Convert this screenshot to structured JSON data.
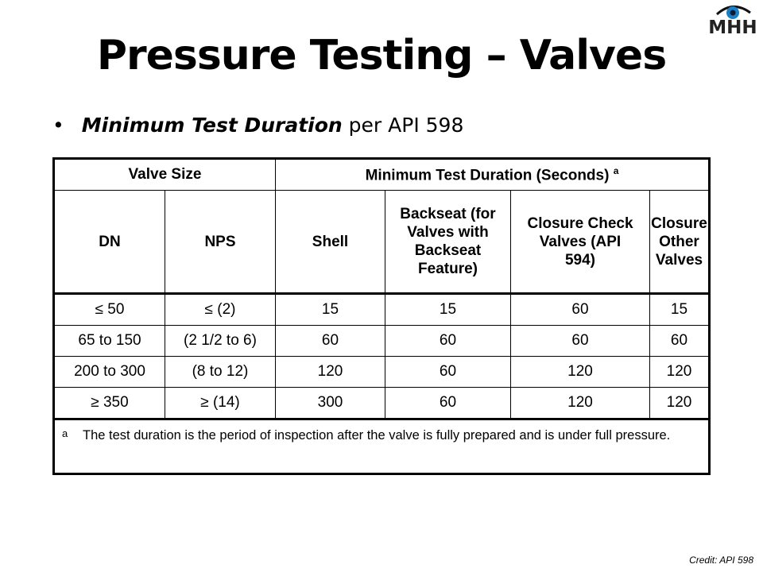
{
  "title": "Pressure Testing – Valves",
  "bullet": {
    "emph": "Minimum Test Duration",
    "rest": " per API 598"
  },
  "logo": {
    "text": "MHH",
    "icon": "eye-icon",
    "eye_color": "#1a7fc4"
  },
  "table": {
    "group_headers": [
      "Valve Size",
      "Minimum Test Duration (Seconds)"
    ],
    "group_note": "a",
    "columns": [
      "DN",
      "NPS",
      "Shell",
      "Backseat (for Valves with Backseat Feature)",
      "Closure Check Valves (API 594)",
      "Closure Other Valves"
    ],
    "rows": [
      [
        "≤ 50",
        "≤ (2)",
        "15",
        "15",
        "60",
        "15"
      ],
      [
        "65 to 150",
        "(2 1/2 to 6)",
        "60",
        "60",
        "60",
        "60"
      ],
      [
        "200 to 300",
        "(8 to 12)",
        "120",
        "60",
        "120",
        "120"
      ],
      [
        "≥ 350",
        "≥ (14)",
        "300",
        "60",
        "120",
        "120"
      ]
    ],
    "footnote_mark": "a",
    "footnote": "The test duration is the period of inspection after the valve is fully prepared and is under full pressure."
  },
  "credit": "Credit: API 598"
}
